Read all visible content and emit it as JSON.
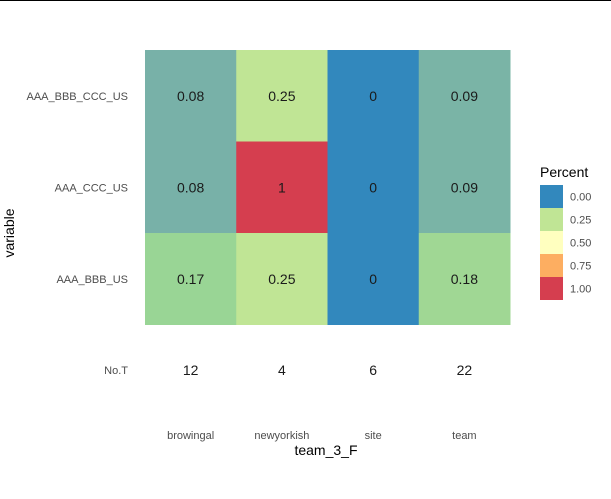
{
  "chart_data": {
    "type": "heatmap",
    "xlabel": "team_3_F",
    "ylabel": "variable",
    "x_categories": [
      "browingal",
      "newyorkish",
      "site",
      "team"
    ],
    "y_categories": [
      "AAA_BBB_CCC_US",
      "AAA_CCC_US",
      "AAA_BBB_US"
    ],
    "cells": [
      {
        "x": "browingal",
        "y": "AAA_BBB_CCC_US",
        "value": 0.08,
        "label": "0.08",
        "color": "#78b1a8"
      },
      {
        "x": "newyorkish",
        "y": "AAA_BBB_CCC_US",
        "value": 0.25,
        "label": "0.25",
        "color": "#c0e595"
      },
      {
        "x": "site",
        "y": "AAA_BBB_CCC_US",
        "value": 0,
        "label": "0",
        "color": "#3288bd"
      },
      {
        "x": "team",
        "y": "AAA_BBB_CCC_US",
        "value": 0.09,
        "label": "0.09",
        "color": "#7ab4a6"
      },
      {
        "x": "browingal",
        "y": "AAA_CCC_US",
        "value": 0.08,
        "label": "0.08",
        "color": "#78b1a8"
      },
      {
        "x": "newyorkish",
        "y": "AAA_CCC_US",
        "value": 1,
        "label": "1",
        "color": "#d53e4f"
      },
      {
        "x": "site",
        "y": "AAA_CCC_US",
        "value": 0,
        "label": "0",
        "color": "#3288bd"
      },
      {
        "x": "team",
        "y": "AAA_CCC_US",
        "value": 0.09,
        "label": "0.09",
        "color": "#7ab4a6"
      },
      {
        "x": "browingal",
        "y": "AAA_BBB_US",
        "value": 0.17,
        "label": "0.17",
        "color": "#99d595"
      },
      {
        "x": "newyorkish",
        "y": "AAA_BBB_US",
        "value": 0.25,
        "label": "0.25",
        "color": "#c0e595"
      },
      {
        "x": "site",
        "y": "AAA_BBB_US",
        "value": 0,
        "label": "0",
        "color": "#3288bd"
      },
      {
        "x": "team",
        "y": "AAA_BBB_US",
        "value": 0.18,
        "label": "0.18",
        "color": "#a0d794"
      }
    ],
    "extra_row": {
      "label": "No.T",
      "values": [
        "12",
        "4",
        "6",
        "22"
      ]
    },
    "legend": {
      "title": "Percent",
      "placement": "right",
      "entries": [
        {
          "label": "0.00",
          "color": "#3288bd"
        },
        {
          "label": "0.25",
          "color": "#c0e595"
        },
        {
          "label": "0.50",
          "color": "#ffffbf"
        },
        {
          "label": "0.75",
          "color": "#fdae61"
        },
        {
          "label": "1.00",
          "color": "#d53e4f"
        }
      ]
    },
    "value_range": [
      0,
      1
    ],
    "grid": false
  }
}
